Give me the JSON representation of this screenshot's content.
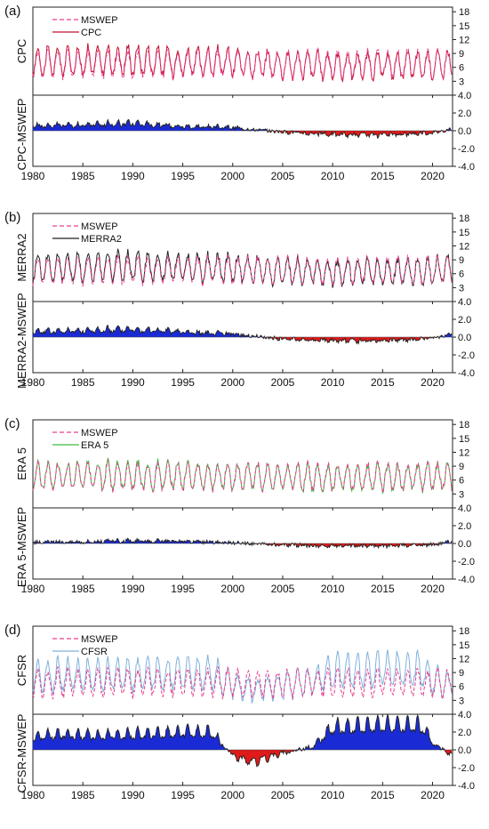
{
  "figure": {
    "colors": {
      "mswep": "#e8408f",
      "diff_outline": "#222222",
      "positive_fill": "#1a2bd6",
      "negative_fill": "#e01a1a"
    }
  },
  "chart_data": [
    {
      "type": "line",
      "panel_label": "(a)",
      "top_ylabel": "CPC",
      "diff_ylabel": "CPC-MSWEP",
      "legend": [
        "MSWEP",
        "CPC"
      ],
      "series_colors": [
        "#e8408f",
        "#c0102a"
      ],
      "x_ticks": [
        "1980",
        "1985",
        "1990",
        "1995",
        "2000",
        "2005",
        "2010",
        "2015",
        "2020"
      ],
      "top_yticks": [
        "18",
        "15",
        "12",
        "9",
        "6",
        "3"
      ],
      "diff_yticks": [
        "4.0",
        "2.0",
        "0.0",
        "-2.0",
        "-4.0"
      ],
      "xlim": [
        1980,
        2022
      ],
      "top_ylim": [
        0,
        19
      ],
      "diff_ylim": [
        -4,
        4
      ],
      "summer_peak_approx": 9.5,
      "winter_trough_approx": 4.0,
      "diff_by_year_approx": {
        "years": [
          1980,
          1985,
          1990,
          1995,
          2000,
          2005,
          2010,
          2015,
          2020,
          2022
        ],
        "values": [
          0.8,
          0.9,
          1.2,
          0.7,
          0.5,
          -0.2,
          -0.6,
          -0.7,
          -0.3,
          0.3
        ]
      }
    },
    {
      "type": "line",
      "panel_label": "(b)",
      "top_ylabel": "MERRA2",
      "diff_ylabel": "MERRA2-MSWEP",
      "legend": [
        "MSWEP",
        "MERRA2"
      ],
      "series_colors": [
        "#e8408f",
        "#222222"
      ],
      "x_ticks": [
        "1980",
        "1985",
        "1990",
        "1995",
        "2000",
        "2005",
        "2010",
        "2015",
        "2020"
      ],
      "top_yticks": [
        "18",
        "15",
        "12",
        "9",
        "6",
        "3"
      ],
      "diff_yticks": [
        "4.0",
        "2.0",
        "0.0",
        "-2.0",
        "-4.0"
      ],
      "xlim": [
        1980,
        2022
      ],
      "top_ylim": [
        0,
        19
      ],
      "diff_ylim": [
        -4,
        4
      ],
      "summer_peak_approx": 9.5,
      "winter_trough_approx": 4.0,
      "diff_by_year_approx": {
        "years": [
          1980,
          1985,
          1990,
          1995,
          2000,
          2005,
          2010,
          2015,
          2020,
          2022
        ],
        "values": [
          0.9,
          1.0,
          1.3,
          0.8,
          0.5,
          -0.3,
          -0.6,
          -0.6,
          -0.2,
          0.4
        ]
      }
    },
    {
      "type": "line",
      "panel_label": "(c)",
      "top_ylabel": "ERA 5",
      "diff_ylabel": "ERA 5-MSWEP",
      "legend": [
        "MSWEP",
        "ERA 5"
      ],
      "series_colors": [
        "#e8408f",
        "#3dbb3d"
      ],
      "x_ticks": [
        "1980",
        "1985",
        "1990",
        "1995",
        "2000",
        "2005",
        "2010",
        "2015",
        "2020"
      ],
      "top_yticks": [
        "18",
        "15",
        "12",
        "9",
        "6",
        "3"
      ],
      "diff_yticks": [
        "4.0",
        "2.0",
        "0.0",
        "-2.0",
        "-4.0"
      ],
      "xlim": [
        1980,
        2022
      ],
      "top_ylim": [
        0,
        19
      ],
      "diff_ylim": [
        -4,
        4
      ],
      "summer_peak_approx": 9.5,
      "winter_trough_approx": 4.0,
      "diff_by_year_approx": {
        "years": [
          1980,
          1985,
          1990,
          1995,
          2000,
          2005,
          2010,
          2015,
          2020,
          2022
        ],
        "values": [
          0.2,
          0.3,
          0.4,
          0.3,
          0.1,
          -0.2,
          -0.4,
          -0.4,
          -0.2,
          0.3
        ]
      }
    },
    {
      "type": "line",
      "panel_label": "(d)",
      "top_ylabel": "CFSR",
      "diff_ylabel": "CFSR-MSWEP",
      "legend": [
        "MSWEP",
        "CFSR"
      ],
      "series_colors": [
        "#e8408f",
        "#7fb2dc"
      ],
      "x_ticks": [
        "1980",
        "1985",
        "1990",
        "1995",
        "2000",
        "2005",
        "2010",
        "2015",
        "2020"
      ],
      "top_yticks": [
        "18",
        "15",
        "12",
        "9",
        "6",
        "3"
      ],
      "diff_yticks": [
        "4.0",
        "2.0",
        "0.0",
        "-2.0",
        "-4.0"
      ],
      "xlim": [
        1980,
        2022
      ],
      "top_ylim": [
        0,
        19
      ],
      "diff_ylim": [
        -4,
        4
      ],
      "summer_peak_approx": 9.5,
      "winter_trough_approx": 4.0,
      "diff_by_year_approx": {
        "years": [
          1980,
          1983,
          1986,
          1990,
          1995,
          1998,
          2000,
          2002,
          2005,
          2008,
          2010,
          2015,
          2019,
          2020,
          2022
        ],
        "values": [
          2.0,
          2.5,
          2.2,
          2.5,
          2.8,
          2.7,
          -1.0,
          -2.0,
          -0.5,
          0.5,
          3.5,
          3.9,
          3.8,
          1.2,
          -1.0
        ]
      }
    }
  ]
}
